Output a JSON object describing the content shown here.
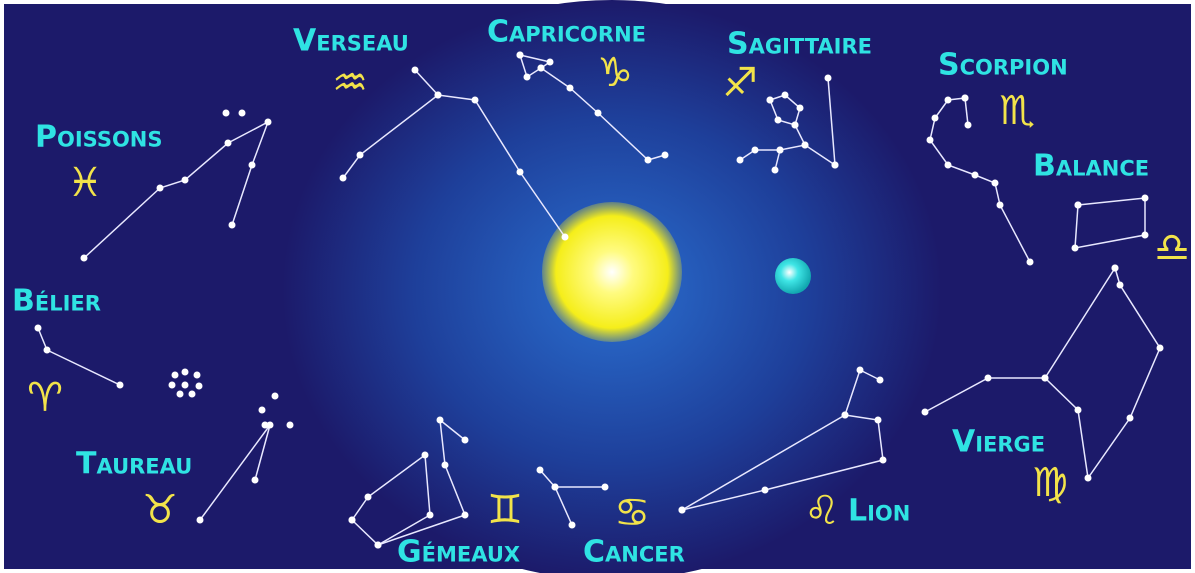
{
  "signs": [
    {
      "name": "Verseau",
      "symbol": "♒"
    },
    {
      "name": "Capricorne",
      "symbol": "♑"
    },
    {
      "name": "Sagittaire",
      "symbol": "♐"
    },
    {
      "name": "Scorpion",
      "symbol": "♏"
    },
    {
      "name": "Poissons",
      "symbol": "♓"
    },
    {
      "name": "Balance",
      "symbol": "♎"
    },
    {
      "name": "Bélier",
      "symbol": "♈"
    },
    {
      "name": "Vierge",
      "symbol": "♍"
    },
    {
      "name": "Taureau",
      "symbol": "♉"
    },
    {
      "name": "Lion",
      "symbol": "♌"
    },
    {
      "name": "Gémeaux",
      "symbol": "♊"
    },
    {
      "name": "Cancer",
      "symbol": "♋"
    }
  ]
}
